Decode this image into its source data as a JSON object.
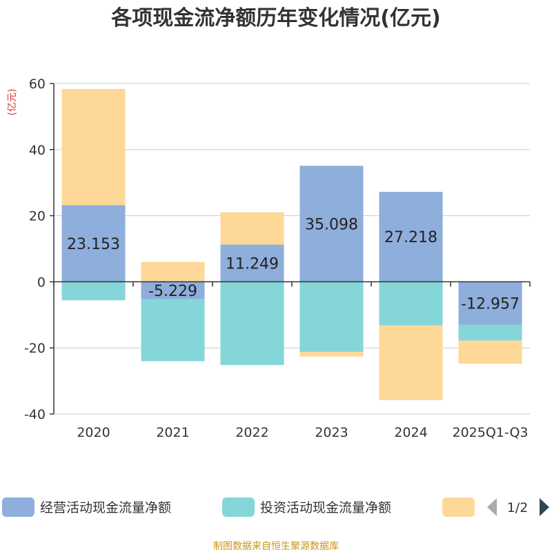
{
  "chart_data": {
    "type": "bar",
    "stacked": true,
    "title": "各项现金流净额历年变化情况(亿元)",
    "unit_label": "(亿元)",
    "categories": [
      "2020",
      "2021",
      "2022",
      "2023",
      "2024",
      "2025Q1-Q3"
    ],
    "ylim": [
      -40,
      60
    ],
    "yticks": [
      60,
      40,
      20,
      0,
      -20,
      -40
    ],
    "grid": true,
    "series": [
      {
        "name": "经营活动现金流量净额",
        "color": "#8eaedb",
        "values": [
          23.153,
          -5.229,
          11.249,
          35.098,
          27.218,
          -12.957
        ],
        "labels": [
          "23.153",
          "-5.229",
          "11.249",
          "35.098",
          "27.218",
          "-12.957"
        ]
      },
      {
        "name": "投资活动现金流量净额",
        "color": "#85d6d8",
        "values": [
          -5.6,
          -18.8,
          -25.2,
          -21.2,
          -13.2,
          -4.8
        ]
      },
      {
        "name": "",
        "color": "#fdd898",
        "values": [
          35.2,
          6.0,
          9.8,
          -1.4,
          -22.6,
          -7.0
        ]
      }
    ],
    "legend_position": "bottom",
    "pager": "1/2",
    "source": "制图数据来自恒生聚源数据库"
  }
}
